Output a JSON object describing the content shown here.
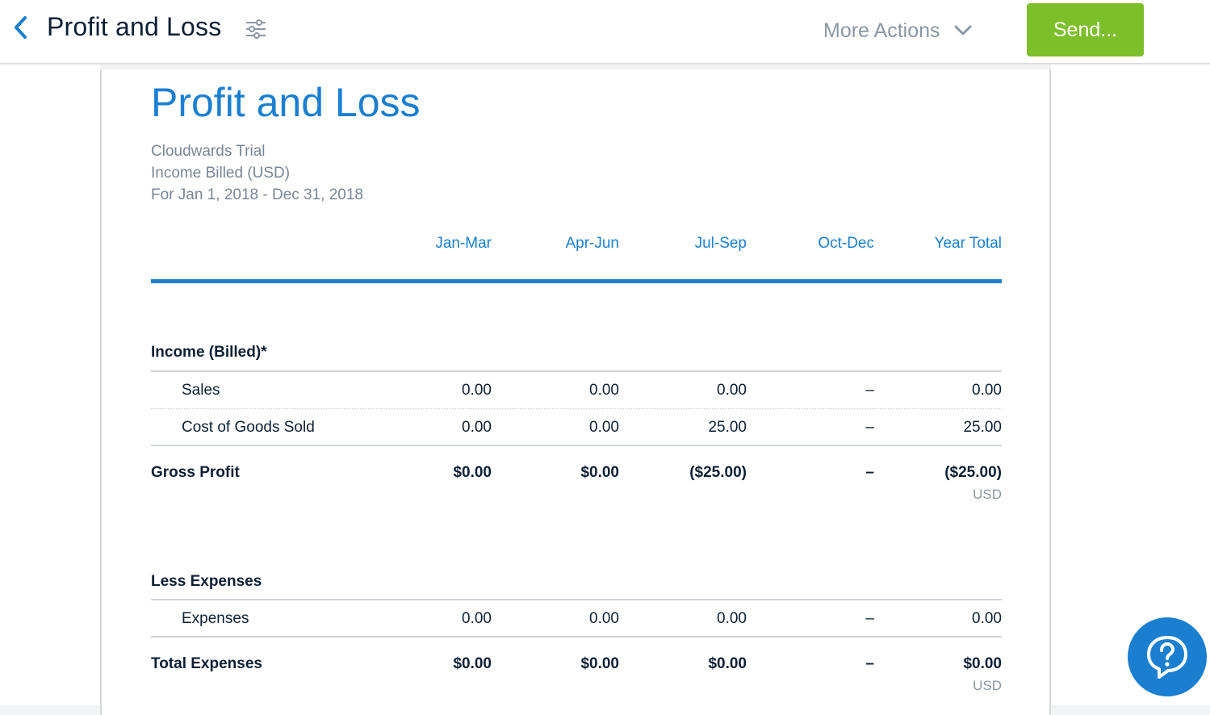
{
  "header": {
    "title": "Profit and Loss",
    "more_actions_label": "More Actions",
    "send_label": "Send..."
  },
  "report": {
    "title": "Profit and Loss",
    "company": "Cloudwards Trial",
    "basis": "Income Billed (USD)",
    "period": "For Jan 1, 2018 - Dec 31, 2018",
    "columns": [
      "Jan-Mar",
      "Apr-Jun",
      "Jul-Sep",
      "Oct-Dec",
      "Year Total"
    ],
    "income_section": {
      "title": "Income (Billed)*",
      "rows": [
        {
          "label": "Sales",
          "values": [
            "0.00",
            "0.00",
            "0.00",
            "–",
            "0.00"
          ]
        },
        {
          "label": "Cost of Goods Sold",
          "values": [
            "0.00",
            "0.00",
            "25.00",
            "–",
            "25.00"
          ]
        }
      ],
      "total": {
        "label": "Gross Profit",
        "values": [
          "$0.00",
          "$0.00",
          "($25.00)",
          "–",
          "($25.00)"
        ],
        "currency": "USD"
      }
    },
    "expense_section": {
      "title": "Less Expenses",
      "rows": [
        {
          "label": "Expenses",
          "values": [
            "0.00",
            "0.00",
            "0.00",
            "–",
            "0.00"
          ]
        }
      ],
      "total": {
        "label": "Total Expenses",
        "values": [
          "$0.00",
          "$0.00",
          "$0.00",
          "–",
          "$0.00"
        ],
        "currency": "USD"
      }
    }
  },
  "colors": {
    "accent": "#1a7fd1",
    "send_button": "#7dbf2a",
    "muted_text": "#788695"
  },
  "icons": {
    "back": "chevron-left-icon",
    "settings": "sliders-icon",
    "dropdown": "chevron-down-icon",
    "help": "help-chat-icon"
  }
}
